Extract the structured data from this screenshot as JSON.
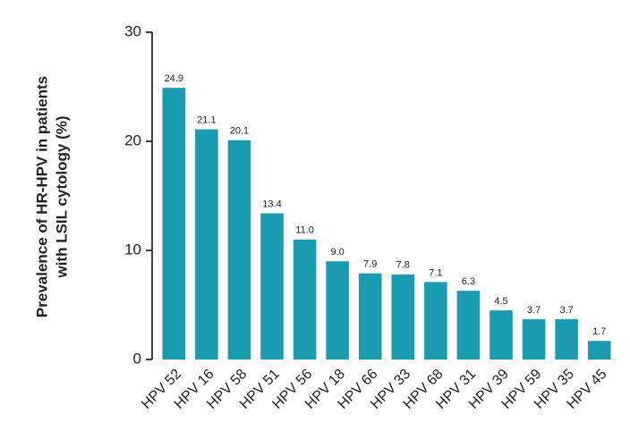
{
  "chart_data": {
    "type": "bar",
    "y_label": [
      "Prevalence of HR-HPV in patients",
      "with LSIL cytology (%)"
    ],
    "categories": [
      "HPV 52",
      "HPV 16",
      "HPV 58",
      "HPV 51",
      "HPV 56",
      "HPV 18",
      "HPV 66",
      "HPV 33",
      "HPV 68",
      "HPV 31",
      "HPV 39",
      "HPV 59",
      "HPV 35",
      "HPV 45"
    ],
    "values": [
      24.9,
      21.1,
      20.1,
      13.4,
      11.0,
      9.0,
      7.9,
      7.8,
      7.1,
      6.3,
      4.5,
      3.7,
      3.7,
      1.7
    ],
    "value_labels": [
      "24.9",
      "21.1",
      "20.1",
      "13.4",
      "11.0",
      "9.0",
      "7.9",
      "7.8",
      "7.1",
      "6.3",
      "4.5",
      "3.7",
      "3.7",
      "1.7"
    ],
    "color": "#1a9bb0",
    "ylim": [
      0,
      30
    ],
    "yticks": [
      0,
      10,
      20,
      30
    ],
    "grid": false
  }
}
